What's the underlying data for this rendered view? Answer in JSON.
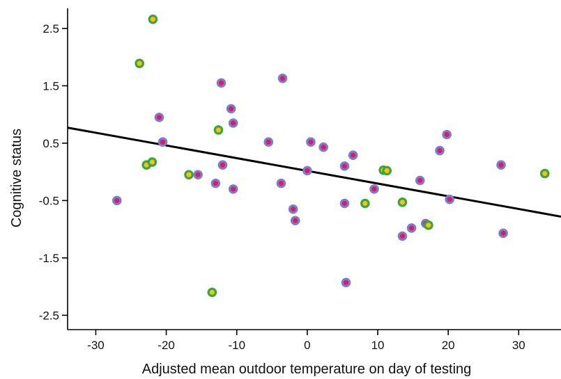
{
  "chart_data": {
    "type": "scatter",
    "title": "",
    "xlabel": "Adjusted mean outdoor temperature on day of testing",
    "ylabel": "Cognitive status",
    "xlim": [
      -34,
      36
    ],
    "ylim": [
      -2.75,
      2.85
    ],
    "x_ticks": [
      -30,
      -20,
      -10,
      0,
      10,
      20,
      30
    ],
    "y_ticks": [
      2.5,
      1.5,
      0.5,
      -0.5,
      -1.5,
      -2.5
    ],
    "x_tick_labels": [
      "-30",
      "-20",
      "-10",
      "0",
      "10",
      "20",
      "30"
    ],
    "y_tick_labels": [
      "2.5",
      "1.5",
      "0.5",
      "-0.5",
      "-1.5",
      "-2.5"
    ],
    "grid": false,
    "legend": "none",
    "regression_line": {
      "x": [
        -34,
        36
      ],
      "y": [
        0.77,
        -0.78
      ],
      "color": "#000000"
    },
    "series": [
      {
        "marker_edge_color": "#7b7bd6",
        "marker_fill_color": "#d81e5b",
        "x": [
          -27,
          -21,
          -20.5,
          -15.5,
          -13,
          -12.2,
          -12,
          -10.8,
          -10.5,
          -10.5,
          -5.5,
          -3.7,
          -3.5,
          -2,
          -1.7,
          0,
          0.5,
          2.3,
          5.3,
          5.3,
          5.5,
          6.5,
          9.5,
          13.5,
          14.8,
          16,
          16.8,
          18.8,
          19.8,
          20.2,
          27.5,
          27.8
        ],
        "y": [
          -0.5,
          0.95,
          0.52,
          -0.05,
          -0.2,
          1.55,
          0.12,
          1.1,
          0.85,
          -0.3,
          0.52,
          -0.2,
          1.63,
          -0.65,
          -0.85,
          0.02,
          0.52,
          0.43,
          0.1,
          -0.55,
          -1.93,
          0.29,
          -0.3,
          -1.12,
          -0.98,
          -0.15,
          -0.9,
          0.37,
          0.65,
          -0.48,
          0.12,
          -1.07
        ]
      },
      {
        "marker_edge_color": "#3aa63a",
        "marker_fill_color": "#f2c21a",
        "x": [
          -23.8,
          -22.8,
          -22,
          -21.9,
          -16.8,
          -13.5,
          -12.6,
          8.2,
          10.8,
          11.3,
          13.5,
          17.2,
          33.7
        ],
        "y": [
          1.89,
          0.12,
          0.17,
          2.66,
          -0.05,
          -2.1,
          0.73,
          -0.55,
          0.03,
          0.02,
          -0.53,
          -0.93,
          -0.03
        ]
      }
    ]
  }
}
